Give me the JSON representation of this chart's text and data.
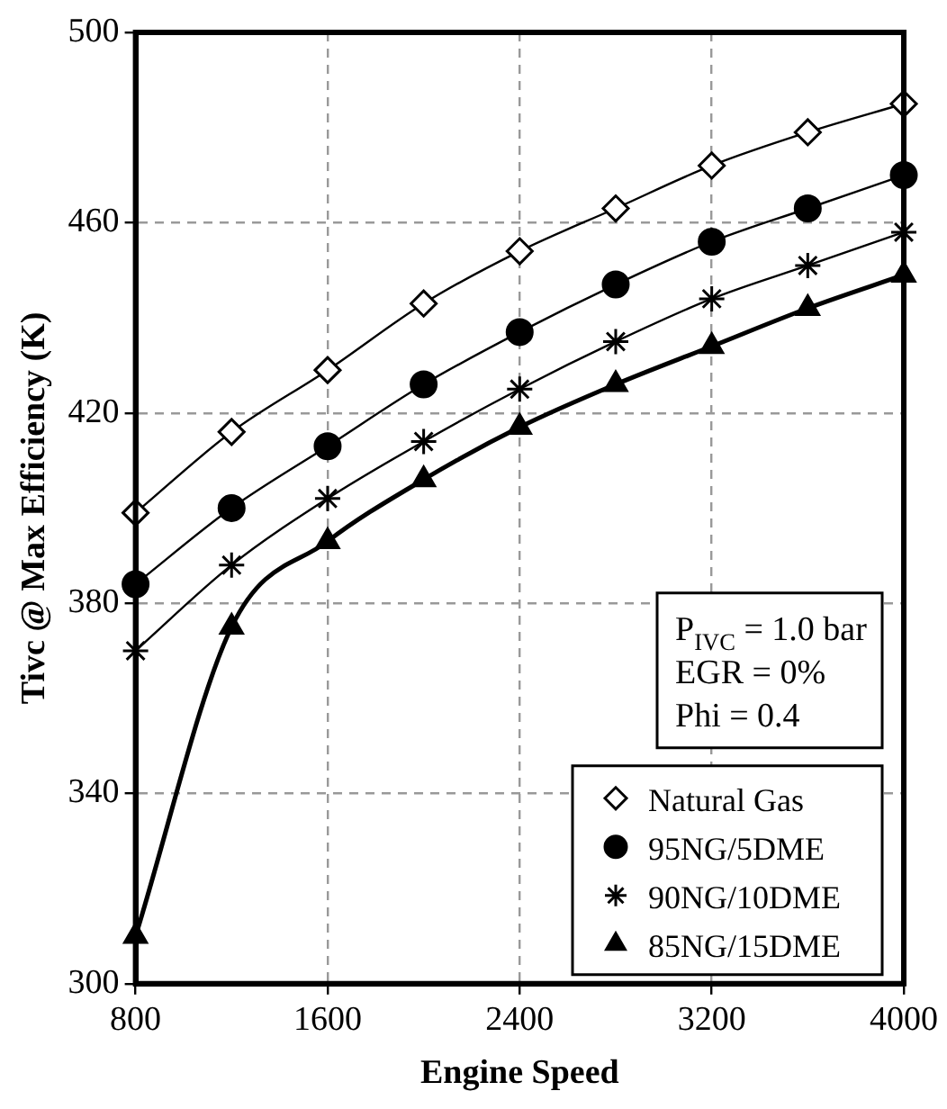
{
  "chart_data": {
    "type": "line",
    "xlabel": "Engine Speed",
    "ylabel": "Tivc @ Max Efficiency (K)",
    "x": [
      800,
      1200,
      1600,
      2000,
      2400,
      2800,
      3200,
      3600,
      4000
    ],
    "xlim": [
      800,
      4000
    ],
    "xticks": [
      800,
      1600,
      2400,
      3200,
      4000
    ],
    "ylim": [
      300,
      500
    ],
    "yticks": [
      300,
      340,
      380,
      420,
      460,
      500
    ],
    "grid": true,
    "legend": "bottom right",
    "annotations": [
      "P$_{IVC}$ = 1.0 bar",
      "EGR = 0%",
      "Phi = 0.4"
    ],
    "series": [
      {
        "name": "Natural Gas",
        "color": "#000000",
        "marker": "diamond",
        "values": [
          399,
          416,
          429,
          443,
          454,
          463,
          472,
          479,
          485
        ]
      },
      {
        "name": "95NG/5DME",
        "color": "#000000",
        "marker": "circle",
        "values": [
          384,
          400,
          413,
          426,
          437,
          447,
          456,
          463,
          470
        ]
      },
      {
        "name": "90NG/10DME",
        "color": "#000000",
        "marker": "cross",
        "values": [
          370,
          388,
          402,
          414,
          425,
          435,
          444,
          451,
          458
        ]
      },
      {
        "name": "85NG/15DME",
        "color": "#000000",
        "marker": "triangle",
        "values": [
          310,
          375,
          393,
          406,
          417,
          426,
          434,
          442,
          449
        ]
      }
    ]
  }
}
